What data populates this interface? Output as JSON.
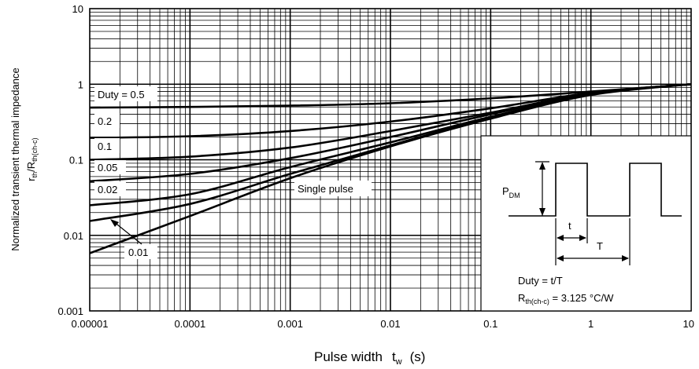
{
  "chart_data": {
    "type": "line",
    "title": "",
    "xlabel": "Pulse width",
    "xlabel_symbol": "t",
    "xlabel_sub": "w",
    "xlabel_unit": "(s)",
    "ylabel_line1": "Normalized transient thermal impedance",
    "ylabel_line2_main": "r",
    "ylabel_line2_sub1": "th",
    "ylabel_line2_mid": "/R",
    "ylabel_line2_sub2": "th(ch-c)",
    "x_scale": "log",
    "y_scale": "log",
    "xlim": [
      1e-05,
      10
    ],
    "ylim": [
      0.001,
      10
    ],
    "grid": true,
    "x_ticks": [
      "0.00001",
      "0.0001",
      "0.001",
      "0.01",
      "0.1",
      "1",
      "10"
    ],
    "y_ticks": [
      "0.001",
      "0.01",
      "0.1",
      "1",
      "10"
    ],
    "series": [
      {
        "name": "Duty = 0.5",
        "x": [
          1e-05,
          0.0001,
          0.001,
          0.01,
          0.1,
          1,
          10
        ],
        "y": [
          0.49,
          0.5,
          0.52,
          0.56,
          0.65,
          0.8,
          1.0
        ]
      },
      {
        "name": "0.2",
        "x": [
          1e-05,
          0.0001,
          0.001,
          0.01,
          0.1,
          1,
          10
        ],
        "y": [
          0.195,
          0.205,
          0.24,
          0.32,
          0.48,
          0.77,
          1.0
        ]
      },
      {
        "name": "0.1",
        "x": [
          1e-05,
          0.0001,
          0.001,
          0.01,
          0.1,
          1,
          10
        ],
        "y": [
          0.1,
          0.11,
          0.145,
          0.24,
          0.42,
          0.76,
          1.0
        ]
      },
      {
        "name": "0.05",
        "x": [
          1e-05,
          0.0001,
          0.001,
          0.01,
          0.1,
          1,
          10
        ],
        "y": [
          0.052,
          0.065,
          0.105,
          0.2,
          0.4,
          0.75,
          1.0
        ]
      },
      {
        "name": "0.02",
        "x": [
          1e-05,
          0.0001,
          0.001,
          0.01,
          0.1,
          1,
          10
        ],
        "y": [
          0.025,
          0.035,
          0.08,
          0.17,
          0.37,
          0.74,
          1.0
        ]
      },
      {
        "name": "0.01",
        "x": [
          1e-05,
          0.0001,
          0.001,
          0.01,
          0.1,
          1,
          10
        ],
        "y": [
          0.0155,
          0.026,
          0.065,
          0.155,
          0.36,
          0.73,
          1.0
        ]
      },
      {
        "name": "Single pulse",
        "x": [
          1e-05,
          0.0001,
          0.001,
          0.01,
          0.1,
          1,
          10
        ],
        "y": [
          0.0058,
          0.018,
          0.057,
          0.15,
          0.35,
          0.72,
          1.0
        ]
      }
    ],
    "annotations": {
      "inset_pdm_main": "P",
      "inset_pdm_sub": "DM",
      "inset_t": "t",
      "inset_T": "T",
      "inset_duty": "Duty = t/T",
      "inset_rth_main": "R",
      "inset_rth_sub": "th(ch-c)",
      "inset_rth_value": " = 3.125 °C/W"
    }
  }
}
